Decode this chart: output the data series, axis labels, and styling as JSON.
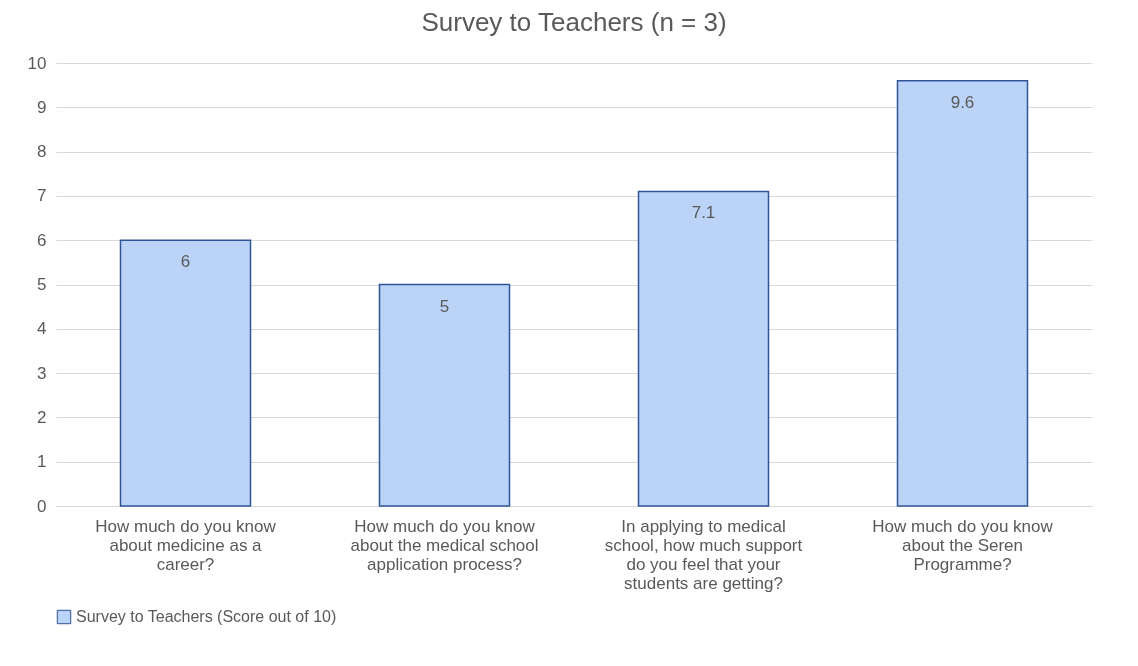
{
  "chart_data": {
    "type": "bar",
    "title": "Survey to Teachers (n = 3)",
    "categories": [
      "How much do you know about medicine as a career?",
      "How much do you know about the medical school application process?",
      "In applying to medical school, how much support do you feel that your students are getting?",
      "How much do you know about the Seren Programme?"
    ],
    "series": [
      {
        "name": "Survey to Teachers (Score out of 10)",
        "color": "#bcd3f8",
        "values": [
          6,
          5,
          7.1,
          9.6
        ]
      }
    ],
    "ylim": [
      0,
      10
    ],
    "yticks": [
      0,
      1,
      2,
      3,
      4,
      5,
      6,
      7,
      8,
      9,
      10
    ],
    "grid": "y",
    "legend": "bottom",
    "data_labels": true
  }
}
